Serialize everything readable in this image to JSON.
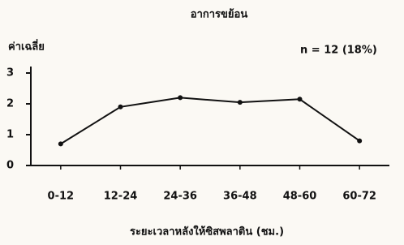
{
  "chart_data": {
    "type": "line",
    "title": "อาการขย้อน",
    "y_label": "ค่าเฉลี่ย",
    "x_label": "ระยะเวลาหลังให้ซิสพลาติน (ชม.)",
    "annotation": "n = 12 (18%)",
    "categories": [
      "0-12",
      "12-24",
      "24-36",
      "36-48",
      "48-60",
      "60-72"
    ],
    "values": [
      0.7,
      1.9,
      2.2,
      2.05,
      2.15,
      0.8
    ],
    "color": "#111111",
    "ylim": [
      0,
      3
    ],
    "yticks": [
      0,
      1,
      2,
      3
    ]
  }
}
